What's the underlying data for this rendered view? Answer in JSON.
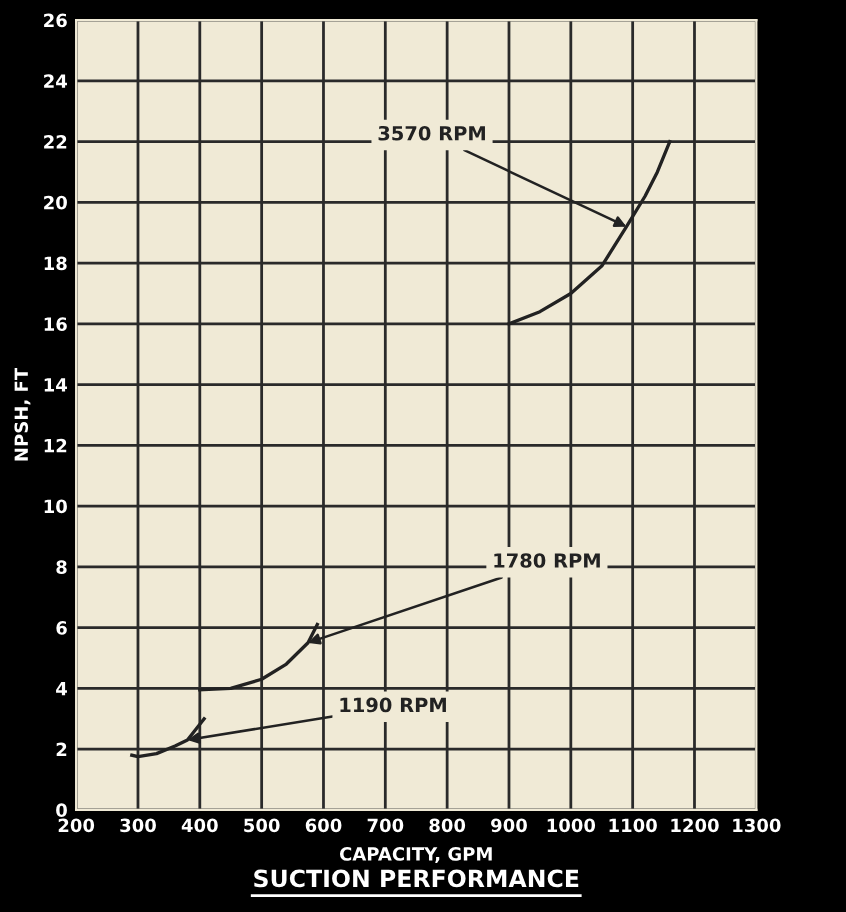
{
  "chart_data": {
    "type": "line",
    "title": "SUCTION PERFORMANCE",
    "xlabel": "CAPACITY, GPM",
    "ylabel": "NPSH, FT",
    "series": [
      {
        "name": "3570 RPM",
        "color": "#222222",
        "x": [
          900,
          950,
          1000,
          1050,
          1090,
          1120,
          1140,
          1160
        ],
        "values": [
          16,
          16.4,
          17,
          17.9,
          19.2,
          20.2,
          21,
          22
        ]
      },
      {
        "name": "1780 RPM",
        "color": "#222222",
        "x": [
          400,
          450,
          500,
          540,
          575,
          590
        ],
        "values": [
          3.95,
          4.0,
          4.3,
          4.8,
          5.5,
          6.1
        ]
      },
      {
        "name": "1190 RPM",
        "color": "#222222",
        "x": [
          290,
          300,
          330,
          360,
          380,
          407
        ],
        "values": [
          1.8,
          1.75,
          1.85,
          2.1,
          2.3,
          3.0
        ]
      }
    ],
    "xlim": [
      200,
      1300
    ],
    "xticks": [
      200,
      300,
      400,
      500,
      600,
      700,
      800,
      900,
      1000,
      1100,
      1200,
      1300
    ],
    "ylim": [
      0,
      26
    ],
    "yticks": [
      0,
      2,
      4,
      6,
      8,
      10,
      12,
      14,
      16,
      18,
      20,
      22,
      24,
      26
    ],
    "grid": true,
    "marker": "none",
    "line_style": "solid",
    "legend": false
  }
}
